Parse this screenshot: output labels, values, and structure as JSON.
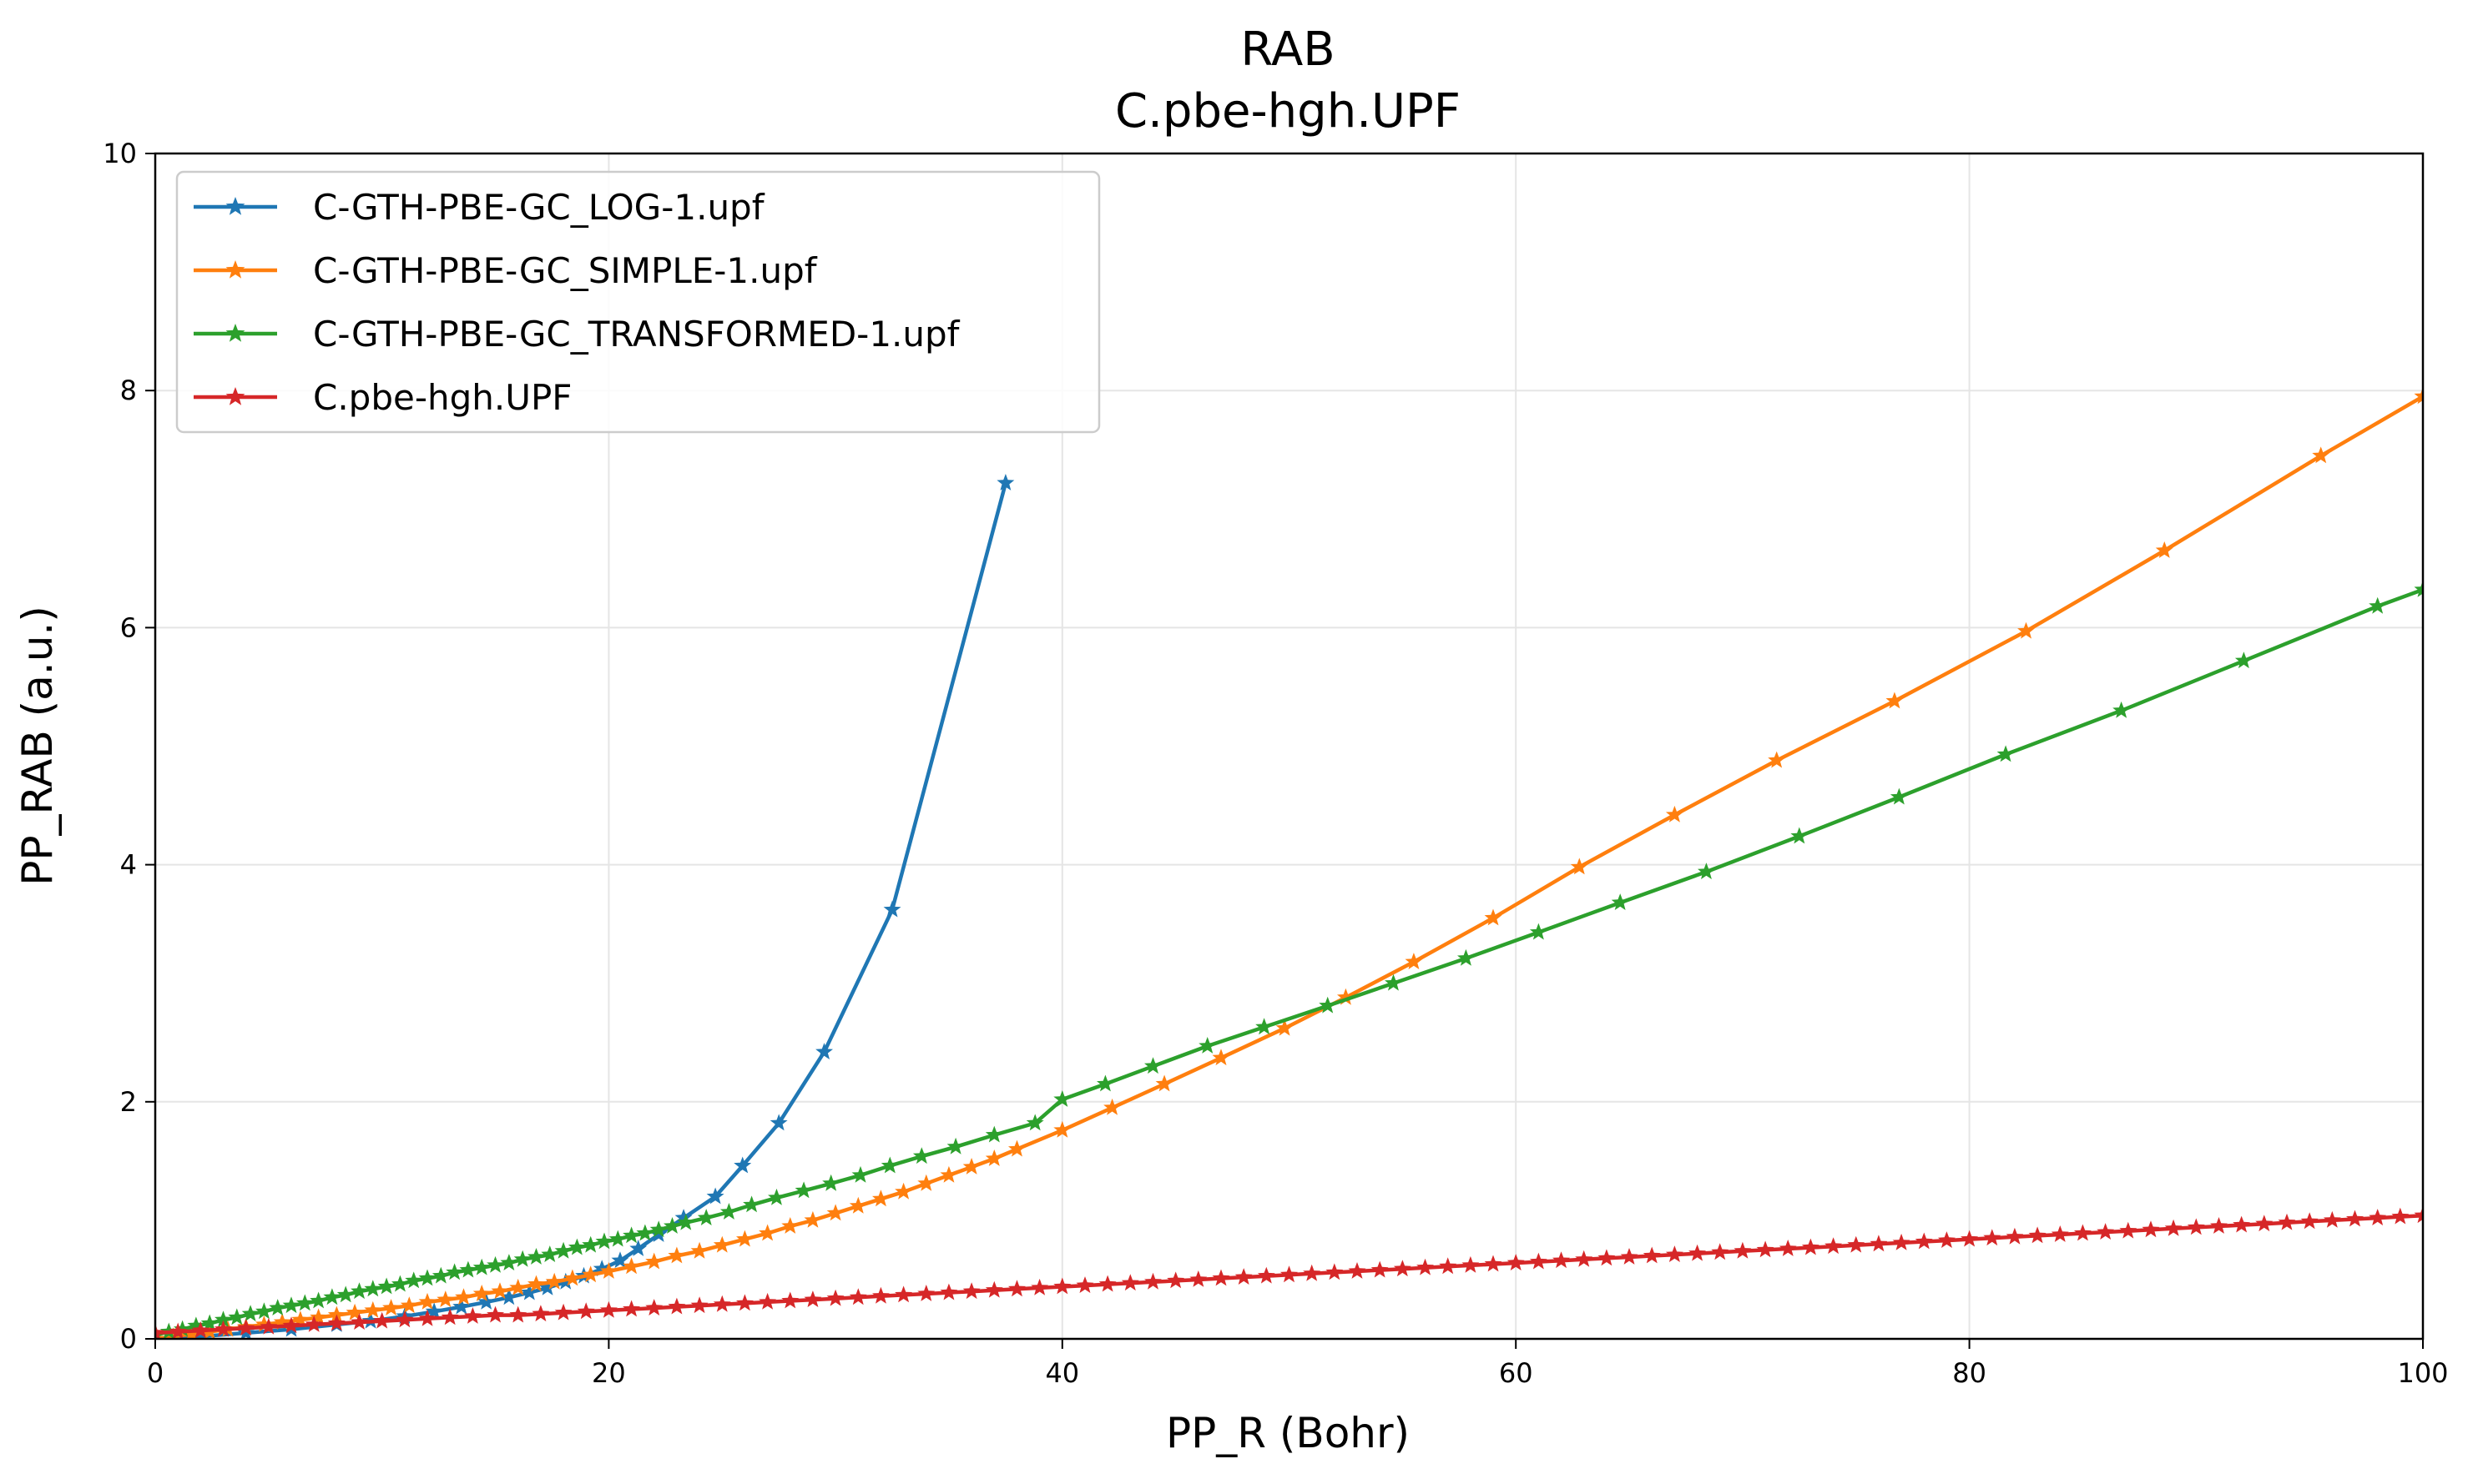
{
  "chart_data": {
    "type": "line",
    "title": "RAB",
    "subtitle": "C.pbe-hgh.UPF",
    "xlabel": "PP_R (Bohr)",
    "ylabel": "PP_RAB (a.u.)",
    "xlim": [
      0,
      100
    ],
    "ylim": [
      0,
      10
    ],
    "xticks": [
      0,
      20,
      40,
      60,
      80,
      100
    ],
    "yticks": [
      0,
      2,
      4,
      6,
      8,
      10
    ],
    "xtick_labels": [
      "0",
      "20",
      "40",
      "60",
      "80",
      "100"
    ],
    "ytick_labels": [
      "0",
      "2",
      "4",
      "6",
      "8",
      "10"
    ],
    "grid": true,
    "legend_position": "top-left",
    "marker": "star",
    "series": [
      {
        "name": "C-GTH-PBE-GC_LOG-1.upf",
        "color": "#1f77b4",
        "x": [
          0.0,
          2.0,
          4.0,
          6.0,
          8.0,
          9.5,
          11.0,
          12.3,
          13.5,
          14.6,
          15.6,
          16.5,
          17.3,
          18.1,
          18.9,
          19.7,
          20.5,
          21.3,
          22.2,
          23.3,
          24.7,
          25.9,
          27.5,
          29.5,
          32.5,
          37.5
        ],
        "y": [
          0.0,
          0.02,
          0.05,
          0.08,
          0.12,
          0.15,
          0.19,
          0.23,
          0.27,
          0.31,
          0.35,
          0.39,
          0.43,
          0.48,
          0.53,
          0.59,
          0.66,
          0.76,
          0.88,
          1.02,
          1.2,
          1.46,
          1.82,
          2.42,
          3.62,
          7.22
        ]
      },
      {
        "name": "C-GTH-PBE-GC_SIMPLE-1.upf",
        "color": "#ff7f0e",
        "x": [
          0.0,
          0.8,
          1.6,
          2.4,
          3.2,
          4.0,
          4.8,
          5.6,
          6.4,
          7.2,
          8.0,
          8.8,
          9.6,
          10.4,
          11.2,
          12.0,
          12.8,
          13.6,
          14.4,
          15.2,
          16.0,
          16.8,
          17.6,
          18.4,
          19.2,
          20.0,
          21.0,
          22.0,
          23.0,
          24.0,
          25.0,
          26.0,
          27.0,
          28.0,
          29.0,
          30.0,
          31.0,
          32.0,
          33.0,
          34.0,
          35.0,
          36.0,
          37.0,
          38.0,
          40.0,
          42.2,
          44.5,
          47.0,
          49.8,
          52.5,
          55.5,
          59.0,
          62.8,
          67.0,
          71.5,
          76.7,
          82.5,
          88.6,
          95.5,
          100.0
        ],
        "y": [
          0.0,
          0.02,
          0.04,
          0.06,
          0.08,
          0.1,
          0.12,
          0.14,
          0.16,
          0.18,
          0.2,
          0.22,
          0.24,
          0.26,
          0.28,
          0.31,
          0.33,
          0.35,
          0.38,
          0.4,
          0.43,
          0.46,
          0.48,
          0.51,
          0.54,
          0.57,
          0.61,
          0.65,
          0.7,
          0.74,
          0.79,
          0.84,
          0.89,
          0.95,
          1.0,
          1.06,
          1.12,
          1.18,
          1.24,
          1.31,
          1.38,
          1.45,
          1.52,
          1.6,
          1.76,
          1.95,
          2.15,
          2.37,
          2.62,
          2.88,
          3.18,
          3.55,
          3.98,
          4.42,
          4.88,
          5.38,
          5.97,
          6.65,
          7.45,
          7.95
        ]
      },
      {
        "name": "C-GTH-PBE-GC_TRANSFORMED-1.upf",
        "color": "#2ca02c",
        "x": [
          0.0,
          0.6,
          1.2,
          1.8,
          2.4,
          3.0,
          3.6,
          4.2,
          4.8,
          5.4,
          6.0,
          6.6,
          7.2,
          7.8,
          8.4,
          9.0,
          9.6,
          10.2,
          10.8,
          11.4,
          12.0,
          12.6,
          13.2,
          13.8,
          14.4,
          15.0,
          15.6,
          16.2,
          16.8,
          17.4,
          18.0,
          18.6,
          19.2,
          19.8,
          20.4,
          21.0,
          21.6,
          22.2,
          22.8,
          23.4,
          24.3,
          25.3,
          26.3,
          27.4,
          28.6,
          29.8,
          31.1,
          32.4,
          33.8,
          35.3,
          37.0,
          38.8,
          40.0,
          41.9,
          44.0,
          46.4,
          48.9,
          51.7,
          54.6,
          57.8,
          61.0,
          64.6,
          68.4,
          72.5,
          76.9,
          81.6,
          86.7,
          92.1,
          98.0,
          100.0
        ],
        "y": [
          0.03,
          0.06,
          0.08,
          0.11,
          0.13,
          0.16,
          0.18,
          0.21,
          0.23,
          0.26,
          0.28,
          0.3,
          0.32,
          0.35,
          0.37,
          0.4,
          0.42,
          0.44,
          0.46,
          0.49,
          0.51,
          0.53,
          0.56,
          0.58,
          0.6,
          0.62,
          0.64,
          0.67,
          0.69,
          0.71,
          0.74,
          0.77,
          0.79,
          0.82,
          0.84,
          0.87,
          0.89,
          0.92,
          0.95,
          0.98,
          1.02,
          1.07,
          1.13,
          1.19,
          1.25,
          1.31,
          1.38,
          1.46,
          1.54,
          1.62,
          1.72,
          1.82,
          2.02,
          2.15,
          2.3,
          2.47,
          2.63,
          2.81,
          3.0,
          3.21,
          3.43,
          3.68,
          3.94,
          4.24,
          4.57,
          4.93,
          5.3,
          5.72,
          6.18,
          6.32
        ]
      },
      {
        "name": "C.pbe-hgh.UPF",
        "color": "#d62728",
        "x": [
          0.0,
          1.0,
          2.0,
          3.0,
          4.0,
          5.0,
          6.0,
          7.0,
          8.0,
          9.0,
          10.0,
          11.0,
          12.0,
          13.0,
          14.0,
          15.0,
          16.0,
          17.0,
          18.0,
          19.0,
          20.0,
          21.0,
          22.0,
          23.0,
          24.0,
          25.0,
          26.0,
          27.0,
          28.0,
          29.0,
          30.0,
          31.0,
          32.0,
          33.0,
          34.0,
          35.0,
          36.0,
          37.0,
          38.0,
          39.0,
          40.0,
          41.0,
          42.0,
          43.0,
          44.0,
          45.0,
          46.0,
          47.0,
          48.0,
          49.0,
          50.0,
          51.0,
          52.0,
          53.0,
          54.0,
          55.0,
          56.0,
          57.0,
          58.0,
          59.0,
          60.0,
          61.0,
          62.0,
          63.0,
          64.0,
          65.0,
          66.0,
          67.0,
          68.0,
          69.0,
          70.0,
          71.0,
          72.0,
          73.0,
          74.0,
          75.0,
          76.0,
          77.0,
          78.0,
          79.0,
          80.0,
          81.0,
          82.0,
          83.0,
          84.0,
          85.0,
          86.0,
          87.0,
          88.0,
          89.0,
          90.0,
          91.0,
          92.0,
          93.0,
          94.0,
          95.0,
          96.0,
          97.0,
          98.0,
          99.0,
          100.0
        ],
        "y": [
          0.05,
          0.06,
          0.07,
          0.08,
          0.09,
          0.1,
          0.11,
          0.12,
          0.13,
          0.14,
          0.15,
          0.16,
          0.17,
          0.18,
          0.19,
          0.2,
          0.2,
          0.21,
          0.22,
          0.23,
          0.24,
          0.25,
          0.26,
          0.27,
          0.28,
          0.29,
          0.3,
          0.31,
          0.32,
          0.33,
          0.34,
          0.35,
          0.36,
          0.37,
          0.38,
          0.39,
          0.4,
          0.41,
          0.42,
          0.43,
          0.44,
          0.45,
          0.46,
          0.47,
          0.48,
          0.49,
          0.5,
          0.51,
          0.52,
          0.53,
          0.54,
          0.55,
          0.56,
          0.57,
          0.58,
          0.59,
          0.6,
          0.61,
          0.62,
          0.63,
          0.64,
          0.65,
          0.66,
          0.67,
          0.68,
          0.69,
          0.7,
          0.71,
          0.72,
          0.73,
          0.74,
          0.75,
          0.76,
          0.77,
          0.78,
          0.79,
          0.8,
          0.81,
          0.82,
          0.83,
          0.84,
          0.85,
          0.86,
          0.87,
          0.88,
          0.89,
          0.9,
          0.91,
          0.92,
          0.93,
          0.94,
          0.95,
          0.96,
          0.97,
          0.98,
          0.99,
          1.0,
          1.01,
          1.02,
          1.03,
          1.04
        ]
      }
    ]
  }
}
